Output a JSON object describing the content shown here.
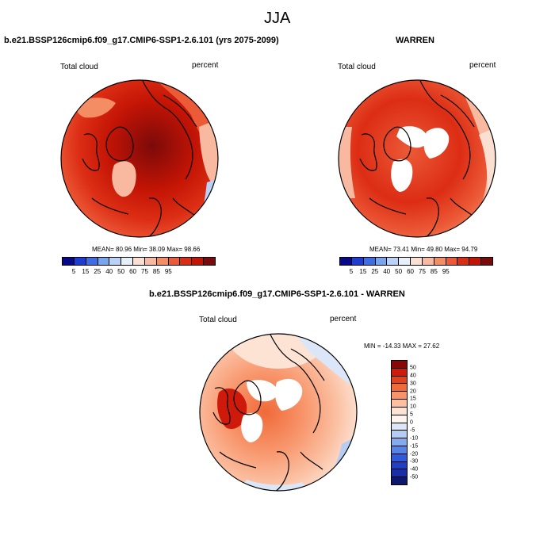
{
  "figure_title": "JJA",
  "panels": [
    {
      "title": "b.e21.BSSP126cmip6.f09_g17.CMIP6-SSP1-2.6.101 (yrs 2075-2099)",
      "variable": "Total cloud",
      "units": "percent",
      "stats": "MEAN=  80.96  Min=  38.09  Max=  98.66"
    },
    {
      "title": "WARREN",
      "variable": "Total cloud",
      "units": "percent",
      "stats": "MEAN=  73.41  Min=  49.80  Max=  94.79"
    },
    {
      "title": "b.e21.BSSP126cmip6.f09_g17.CMIP6-SSP1-2.6.101 - WARREN",
      "variable": "Total cloud",
      "units": "percent",
      "stats": "MIN = -14.33 MAX =  27.62"
    }
  ],
  "colorbar_abs": {
    "labels": [
      "5",
      "15",
      "25",
      "40",
      "50",
      "60",
      "75",
      "85",
      "95"
    ],
    "colors": [
      "#08088c",
      "#1c3cd2",
      "#3c6fe6",
      "#78a5f0",
      "#b9d2f7",
      "#e6f0fb",
      "#fbe0d2",
      "#f9b9a0",
      "#f48c64",
      "#ec5a37",
      "#dc2d14",
      "#c31405",
      "#7c0a0a"
    ]
  },
  "colorbar_diff": {
    "labels": [
      "50",
      "40",
      "30",
      "20",
      "15",
      "10",
      "5",
      "0",
      "-5",
      "-10",
      "-15",
      "-20",
      "-30",
      "-40",
      "-50"
    ],
    "colors": [
      "#880707",
      "#ce1a0b",
      "#e5401c",
      "#f06a3a",
      "#f8946a",
      "#fbc0a2",
      "#fde3d4",
      "#fdf4ee",
      "#dbe7f8",
      "#b5cdf3",
      "#84aced",
      "#5583e6",
      "#2e5bdc",
      "#1f3fc6",
      "#1a2ea8",
      "#0e1870"
    ]
  }
}
